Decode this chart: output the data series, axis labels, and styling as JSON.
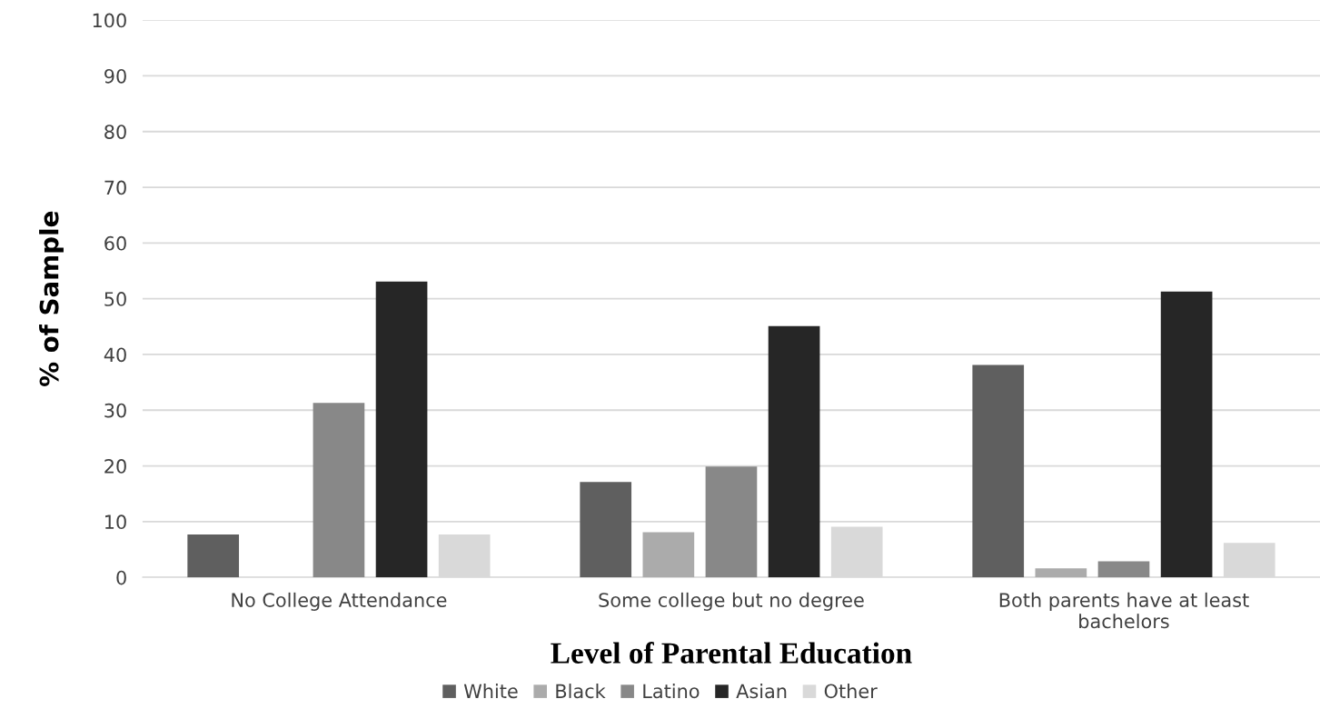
{
  "chart_data": {
    "type": "bar",
    "xlabel": "Level of Parental Education",
    "ylabel": "% of Sample",
    "categories": [
      "No College Attendance",
      "Some college but no degree",
      "Both parents have at least\nbachelors"
    ],
    "series": [
      {
        "name": "White",
        "color": "#5f5f5f",
        "values": [
          7.7,
          17.1,
          38.1
        ]
      },
      {
        "name": "Black",
        "color": "#ababab",
        "values": [
          0,
          8.1,
          1.6
        ]
      },
      {
        "name": "Latino",
        "color": "#888888",
        "values": [
          31.3,
          19.9,
          2.9
        ]
      },
      {
        "name": "Asian",
        "color": "#262626",
        "values": [
          53.1,
          45.1,
          51.3
        ]
      },
      {
        "name": "Other",
        "color": "#d9d9d9",
        "values": [
          7.7,
          9.1,
          6.2
        ]
      }
    ],
    "ylim": [
      0,
      100
    ],
    "yticks": [
      0,
      10,
      20,
      30,
      40,
      50,
      60,
      70,
      80,
      90,
      100
    ],
    "grid": "y",
    "legend": "bottom"
  }
}
